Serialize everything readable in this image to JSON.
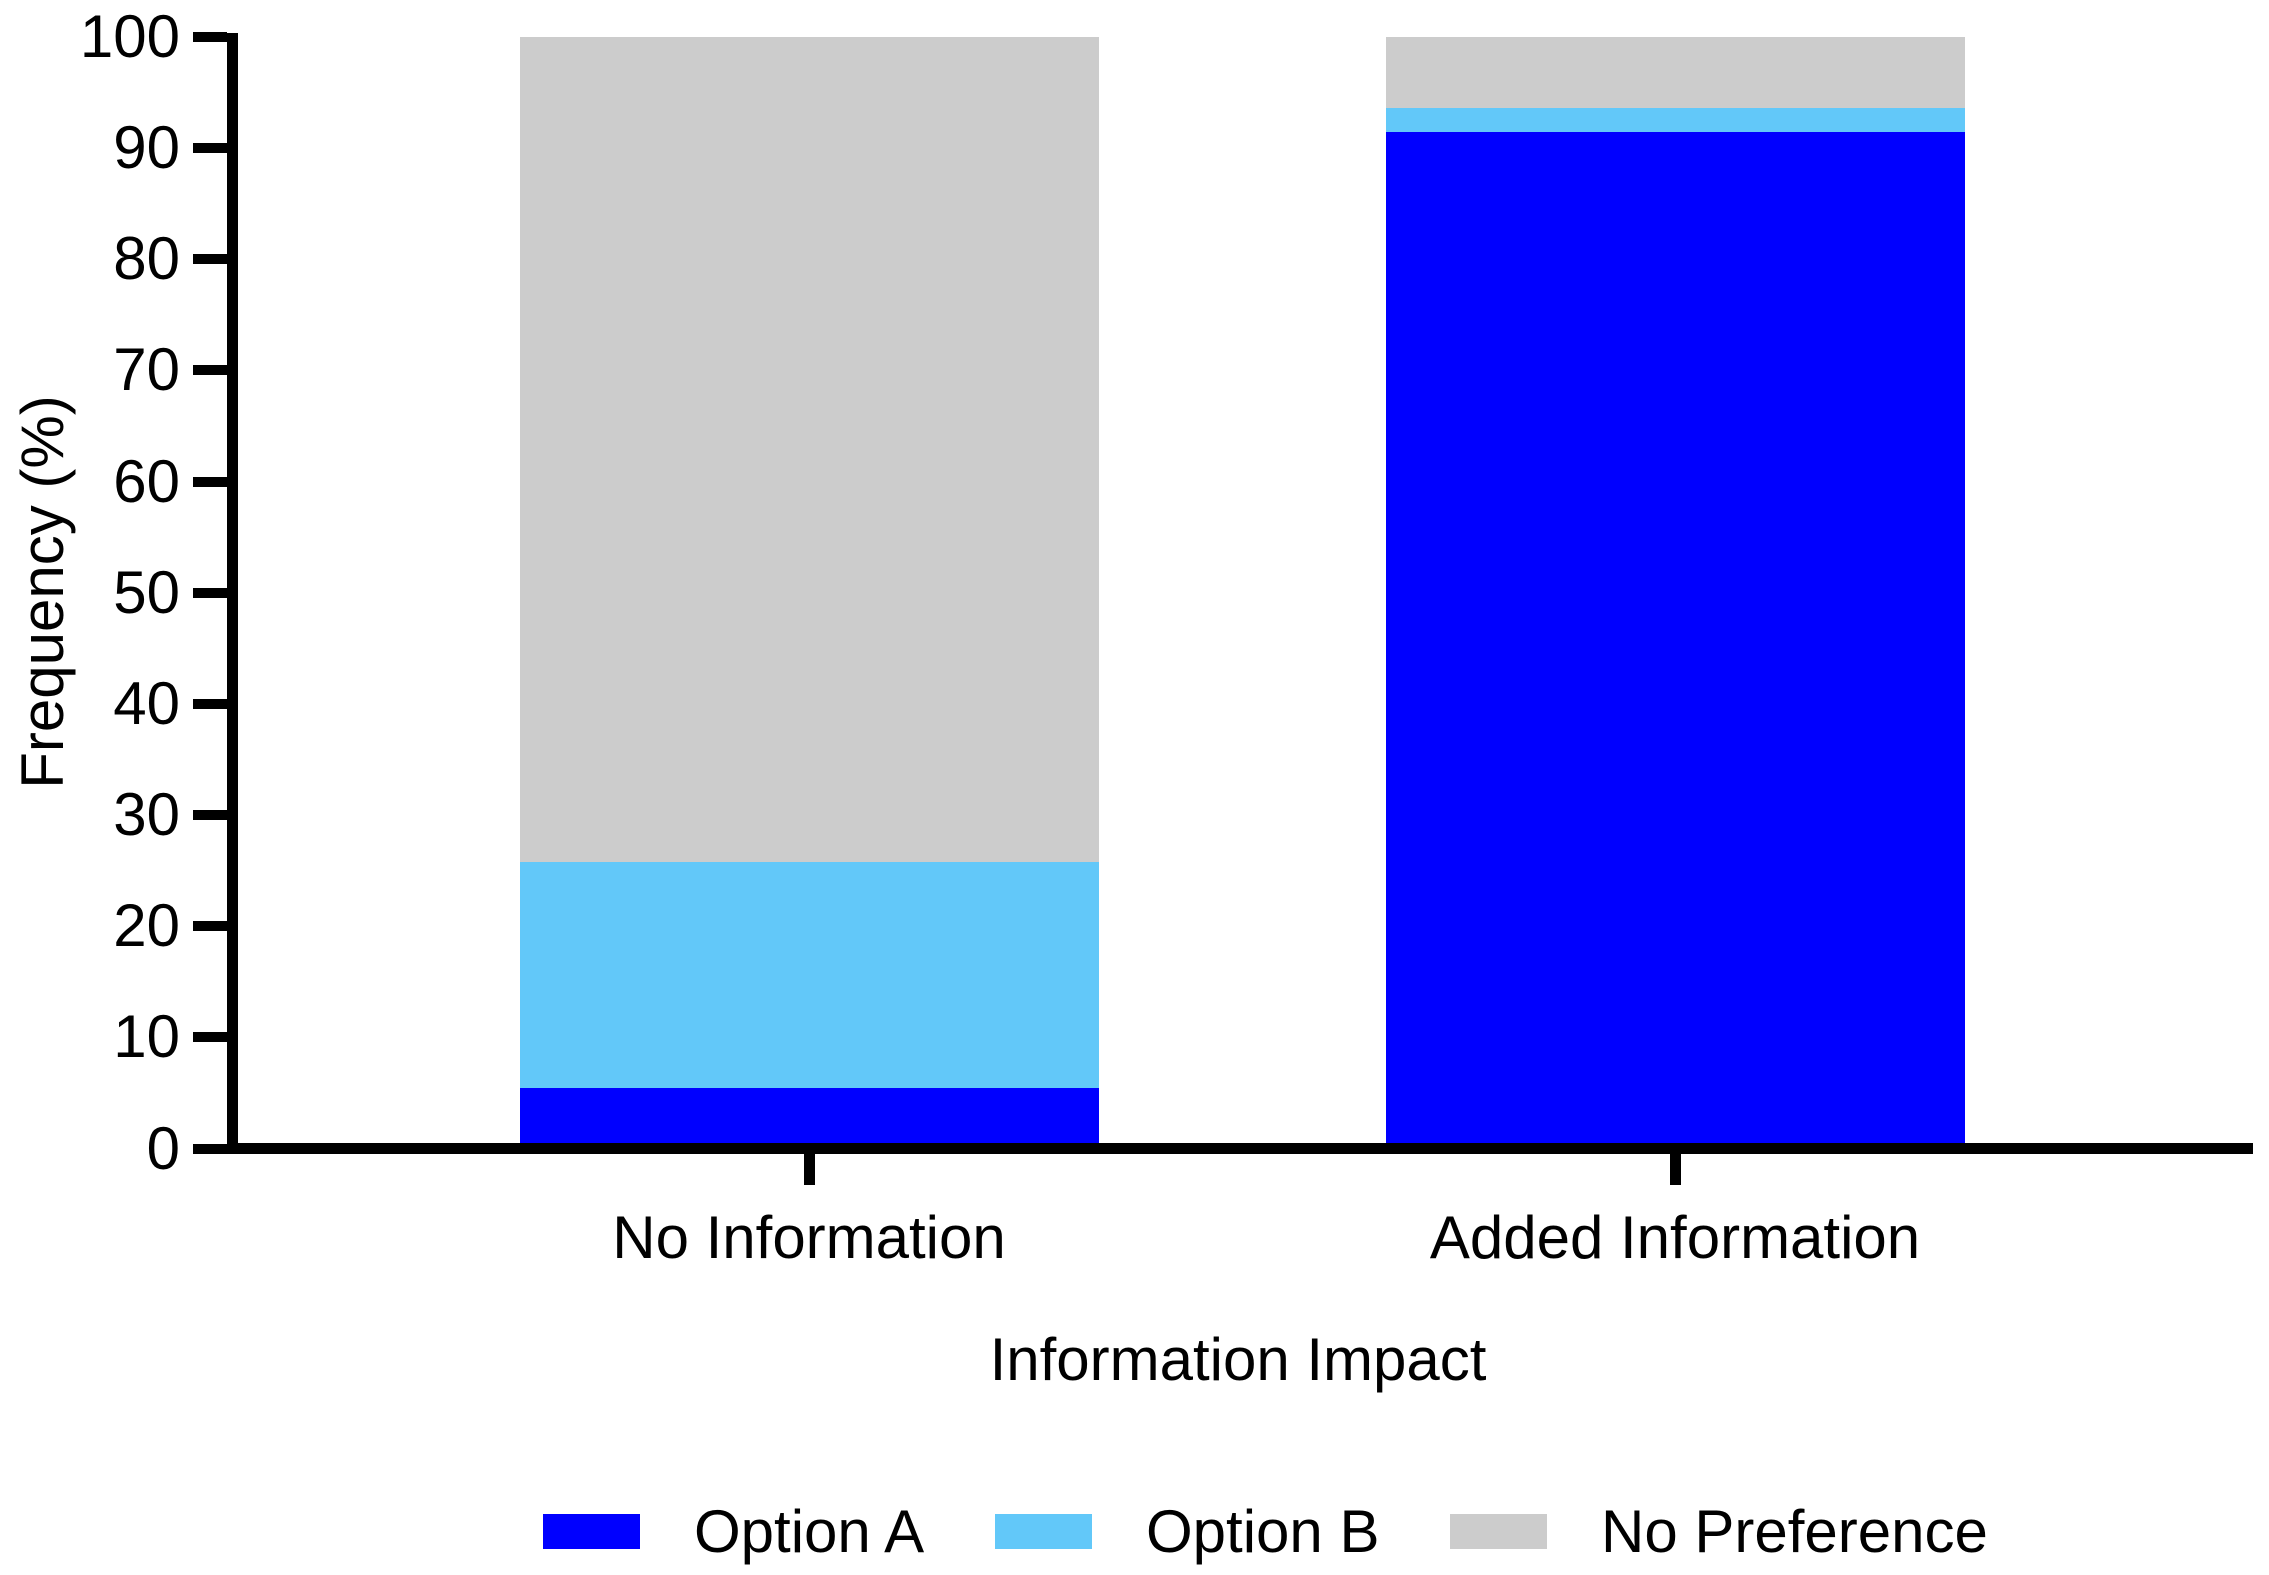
{
  "chart_data": {
    "type": "bar",
    "stacked": true,
    "orientation": "vertical",
    "title": "",
    "xlabel": "Information Impact",
    "ylabel": "Frequency (%)",
    "categories": [
      "No Information",
      "Added Information"
    ],
    "series": [
      {
        "name": "Option A",
        "color": "#0000ff",
        "values": [
          5.0,
          91.4
        ]
      },
      {
        "name": "Option B",
        "color": "#62c8f9",
        "values": [
          20.4,
          2.2
        ]
      },
      {
        "name": "No Preference",
        "color": "#cccccc",
        "values": [
          74.6,
          6.4
        ]
      }
    ],
    "ylim": [
      0,
      100
    ],
    "yticks": [
      0,
      10,
      20,
      30,
      40,
      50,
      60,
      70,
      80,
      90,
      100
    ],
    "grid": false,
    "legend_position": "bottom",
    "axis_color": "#000000",
    "background_color": "#ffffff"
  }
}
